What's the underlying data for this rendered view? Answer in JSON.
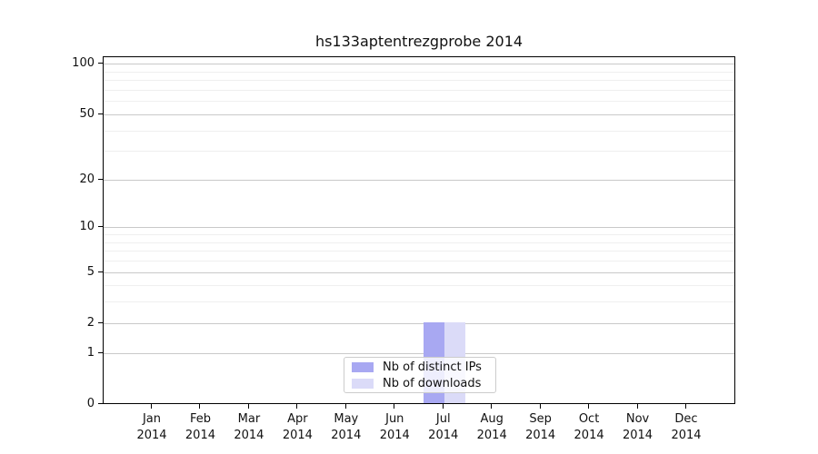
{
  "title": "hs133aptentrezgprobe 2014",
  "chart_data": {
    "type": "bar",
    "title": "hs133aptentrezgprobe 2014",
    "categories": [
      {
        "label": "Jan",
        "sublabel": "2014"
      },
      {
        "label": "Feb",
        "sublabel": "2014"
      },
      {
        "label": "Mar",
        "sublabel": "2014"
      },
      {
        "label": "Apr",
        "sublabel": "2014"
      },
      {
        "label": "May",
        "sublabel": "2014"
      },
      {
        "label": "Jun",
        "sublabel": "2014"
      },
      {
        "label": "Jul",
        "sublabel": "2014"
      },
      {
        "label": "Aug",
        "sublabel": "2014"
      },
      {
        "label": "Sep",
        "sublabel": "2014"
      },
      {
        "label": "Oct",
        "sublabel": "2014"
      },
      {
        "label": "Nov",
        "sublabel": "2014"
      },
      {
        "label": "Dec",
        "sublabel": "2014"
      }
    ],
    "series": [
      {
        "name": "Nb of distinct IPs",
        "color": "#a8a8f2",
        "values": [
          0,
          0,
          0,
          0,
          0,
          0,
          2,
          0,
          0,
          0,
          0,
          0
        ]
      },
      {
        "name": "Nb of downloads",
        "color": "#dbdbf8",
        "values": [
          0,
          0,
          0,
          0,
          0,
          0,
          2,
          0,
          0,
          0,
          0,
          0
        ]
      }
    ],
    "scale": "log1p",
    "ylim": [
      0,
      111
    ],
    "yticks_major": [
      0,
      1,
      2,
      5,
      10,
      20,
      50,
      100
    ],
    "yticks_minor": [
      3,
      4,
      6,
      7,
      8,
      9,
      30,
      40,
      60,
      70,
      80,
      90
    ],
    "grid": "horizontal",
    "legend_position": "lower center",
    "xlabel": "",
    "ylabel": ""
  }
}
